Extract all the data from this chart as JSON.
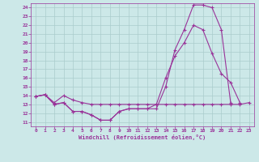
{
  "xlabel": "Windchill (Refroidissement éolien,°C)",
  "bg_color": "#cce8e8",
  "grid_color": "#aacccc",
  "line_color": "#993399",
  "x_ticks": [
    0,
    1,
    2,
    3,
    4,
    5,
    6,
    7,
    8,
    9,
    10,
    11,
    12,
    13,
    14,
    15,
    16,
    17,
    18,
    19,
    20,
    21,
    22,
    23
  ],
  "y_ticks": [
    11,
    12,
    13,
    14,
    15,
    16,
    17,
    18,
    19,
    20,
    21,
    22,
    23,
    24
  ],
  "xlim": [
    -0.5,
    23.5
  ],
  "ylim": [
    10.5,
    24.5
  ],
  "series": [
    {
      "x": [
        0,
        1,
        2,
        3,
        4,
        5,
        6,
        7,
        8,
        9,
        10,
        11,
        12,
        13,
        14,
        15,
        16,
        17,
        18,
        19,
        20,
        21
      ],
      "y": [
        13.9,
        14.1,
        13.0,
        13.2,
        12.2,
        12.2,
        11.8,
        11.2,
        11.2,
        12.2,
        12.5,
        12.5,
        12.5,
        12.5,
        15.0,
        19.2,
        21.5,
        24.3,
        24.3,
        24.0,
        21.5,
        13.2
      ]
    },
    {
      "x": [
        0,
        1,
        2,
        3,
        4,
        5,
        6,
        7,
        8,
        9,
        10,
        11,
        12,
        13,
        14,
        15,
        16,
        17,
        18,
        19,
        20,
        21,
        22,
        23
      ],
      "y": [
        13.9,
        14.1,
        13.0,
        13.2,
        12.2,
        12.2,
        11.8,
        11.2,
        11.2,
        12.2,
        12.5,
        12.5,
        12.5,
        13.0,
        16.0,
        18.5,
        20.0,
        22.0,
        21.5,
        18.8,
        16.5,
        15.5,
        13.2,
        null
      ]
    },
    {
      "x": [
        0,
        1,
        2,
        3,
        4,
        5,
        6,
        7,
        8,
        9,
        10,
        11,
        12,
        13,
        14,
        15,
        16,
        17,
        18,
        19,
        20,
        21,
        22,
        23
      ],
      "y": [
        13.9,
        14.1,
        13.2,
        14.0,
        13.5,
        13.2,
        13.0,
        13.0,
        13.0,
        13.0,
        13.0,
        13.0,
        13.0,
        13.0,
        13.0,
        13.0,
        13.0,
        13.0,
        13.0,
        13.0,
        13.0,
        13.0,
        13.0,
        13.2
      ]
    }
  ]
}
